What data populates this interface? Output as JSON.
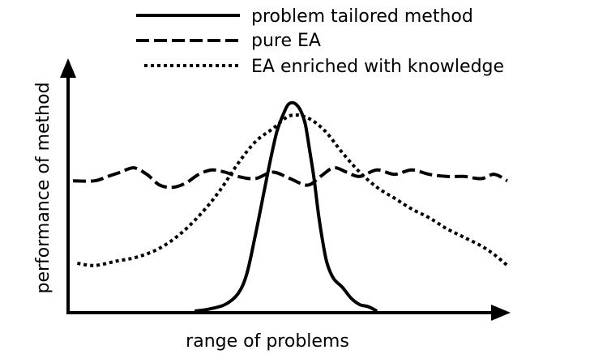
{
  "chart_data": {
    "type": "line",
    "title": "",
    "xlabel": "range of problems",
    "ylabel": "performance of method",
    "xlim": [
      0,
      100
    ],
    "ylim": [
      0,
      100
    ],
    "grid": false,
    "legend_position": "top",
    "series": [
      {
        "name": "problem tailored method",
        "style": "solid",
        "x": [
          28,
          31,
          35,
          38,
          40,
          42,
          44,
          45.5,
          47,
          48.5,
          49.5,
          50.5,
          51.5,
          52.5,
          53.5,
          54.5,
          55.5,
          56.5,
          57.5,
          58.5,
          60,
          62,
          64,
          66,
          68,
          70
        ],
        "y": [
          0,
          0.8,
          3,
          8,
          17,
          35,
          55,
          70,
          83,
          91,
          95,
          96,
          95,
          92,
          86,
          74,
          61,
          45,
          32,
          22,
          15,
          11,
          6,
          3,
          2,
          0
        ]
      },
      {
        "name": "pure EA",
        "style": "dashed",
        "x": [
          0,
          5,
          8,
          11,
          14,
          17,
          20,
          23,
          26,
          29,
          32,
          35,
          38,
          42,
          46,
          50,
          54,
          57,
          60,
          63,
          66,
          70,
          74,
          78,
          82,
          86,
          90,
          94,
          97,
          100
        ],
        "y": [
          60,
          60,
          62,
          64,
          66,
          63,
          58,
          57,
          59,
          63,
          65,
          64,
          62,
          61,
          64,
          61,
          58,
          62,
          66,
          64,
          62,
          65,
          63,
          65,
          63,
          62,
          62,
          61,
          63,
          60
        ]
      },
      {
        "name": "EA enriched with knowledge",
        "style": "dotted",
        "x": [
          1,
          5,
          10,
          15,
          20,
          25,
          30,
          34,
          38,
          42,
          46,
          50,
          54,
          58,
          62,
          66,
          70,
          74,
          78,
          82,
          86,
          90,
          94,
          97,
          100
        ],
        "y": [
          22,
          21,
          23,
          25,
          29,
          36,
          46,
          56,
          68,
          78,
          84,
          90,
          89,
          83,
          73,
          64,
          57,
          52,
          47,
          43,
          38,
          34,
          30,
          26,
          21
        ]
      }
    ]
  }
}
